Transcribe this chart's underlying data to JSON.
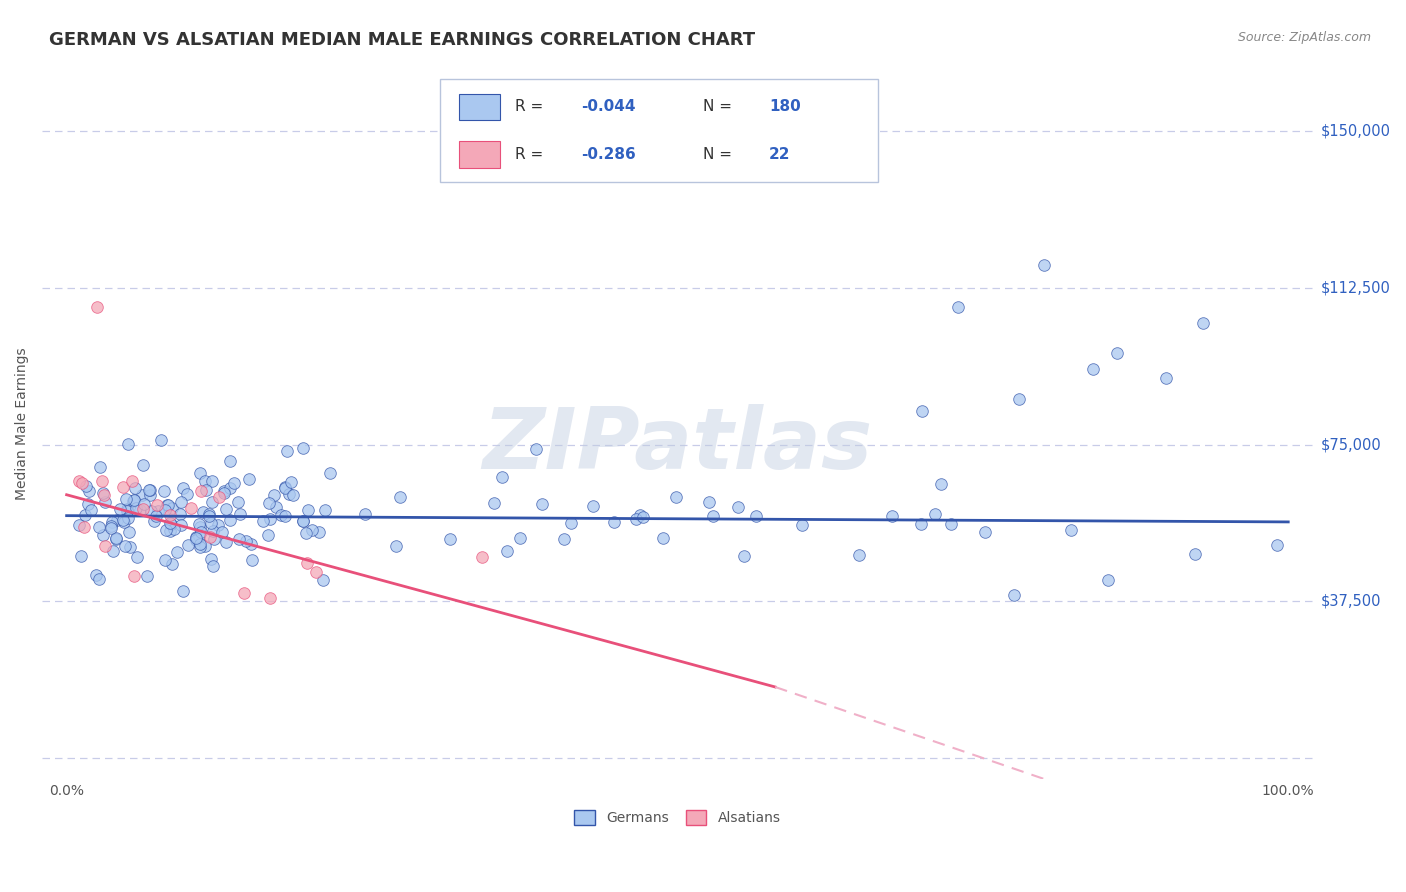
{
  "title": "GERMAN VS ALSATIAN MEDIAN MALE EARNINGS CORRELATION CHART",
  "source_text": "Source: ZipAtlas.com",
  "ylabel": "Median Male Earnings",
  "watermark": "ZIPatlas",
  "xlim": [
    -0.02,
    1.02
  ],
  "ylim": [
    -5000,
    165000
  ],
  "ytick_values": [
    0,
    37500,
    75000,
    112500,
    150000
  ],
  "ytick_labels": [
    "",
    "$37,500",
    "$75,000",
    "$112,500",
    "$150,000"
  ],
  "xtick_values": [
    0.0,
    0.25,
    0.5,
    0.75,
    1.0
  ],
  "xtick_labels": [
    "0.0%",
    "",
    "",
    "",
    "100.0%"
  ],
  "german_R": -0.044,
  "german_N": 180,
  "alsatian_R": -0.286,
  "alsatian_N": 22,
  "german_color": "#aac8f0",
  "alsatian_color": "#f4a8b8",
  "german_line_color": "#3355aa",
  "alsatian_line_color": "#e8507a",
  "alsatian_dashed_color": "#f0b0c8",
  "background_color": "#ffffff",
  "grid_color": "#c8cce8",
  "title_color": "#333333",
  "source_color": "#888888",
  "legend_blue_color": "#3060c0",
  "seed": 42
}
